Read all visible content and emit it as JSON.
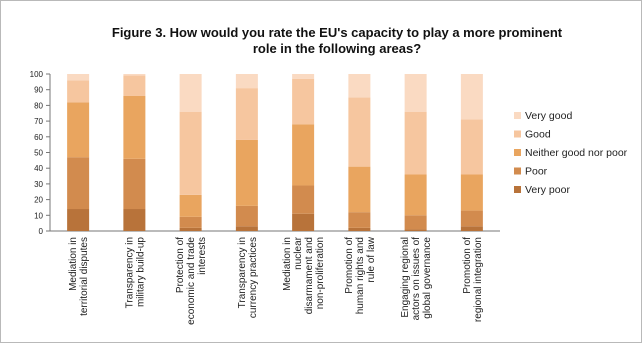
{
  "chart_data": {
    "type": "bar",
    "stacked": true,
    "title_lines": [
      "Figure 3. How would you rate the EU's capacity to play a more prominent",
      "role in the following areas?"
    ],
    "ylim": [
      0,
      100
    ],
    "yticks": [
      0,
      10,
      20,
      30,
      40,
      50,
      60,
      70,
      80,
      90,
      100
    ],
    "legend_position": "right",
    "grid": false,
    "categories": [
      [
        "Mediation in",
        "territorial disputes"
      ],
      [
        "Transparency in",
        "military build-up"
      ],
      [
        "Protection of",
        "economic and trade",
        "interests"
      ],
      [
        "Transparency in",
        "currency practices"
      ],
      [
        "Mediation in",
        "nuclear",
        "disarmament and",
        "non-proliferation"
      ],
      [
        "Promotion of",
        "human rights and",
        "rule of law"
      ],
      [
        "Engaging regional",
        "actors on issues of",
        "global governance"
      ],
      [
        "Promotion of",
        "regional integration"
      ]
    ],
    "series": [
      {
        "name": "Very poor",
        "color": "#b8733a",
        "values": [
          14,
          14,
          2,
          3,
          11,
          2,
          1,
          3
        ]
      },
      {
        "name": "Poor",
        "color": "#d28b4e",
        "values": [
          33,
          32,
          7,
          13,
          18,
          10,
          9,
          10
        ]
      },
      {
        "name": "Neither good nor poor",
        "color": "#e9a55f",
        "values": [
          35,
          40,
          14,
          42,
          39,
          29,
          26,
          23
        ]
      },
      {
        "name": "Good",
        "color": "#f6c69f",
        "values": [
          14,
          13,
          53,
          33,
          29,
          44,
          40,
          35
        ]
      },
      {
        "name": "Very good",
        "color": "#fadac2",
        "values": [
          4,
          1,
          24,
          9,
          3,
          15,
          24,
          29
        ]
      }
    ]
  }
}
